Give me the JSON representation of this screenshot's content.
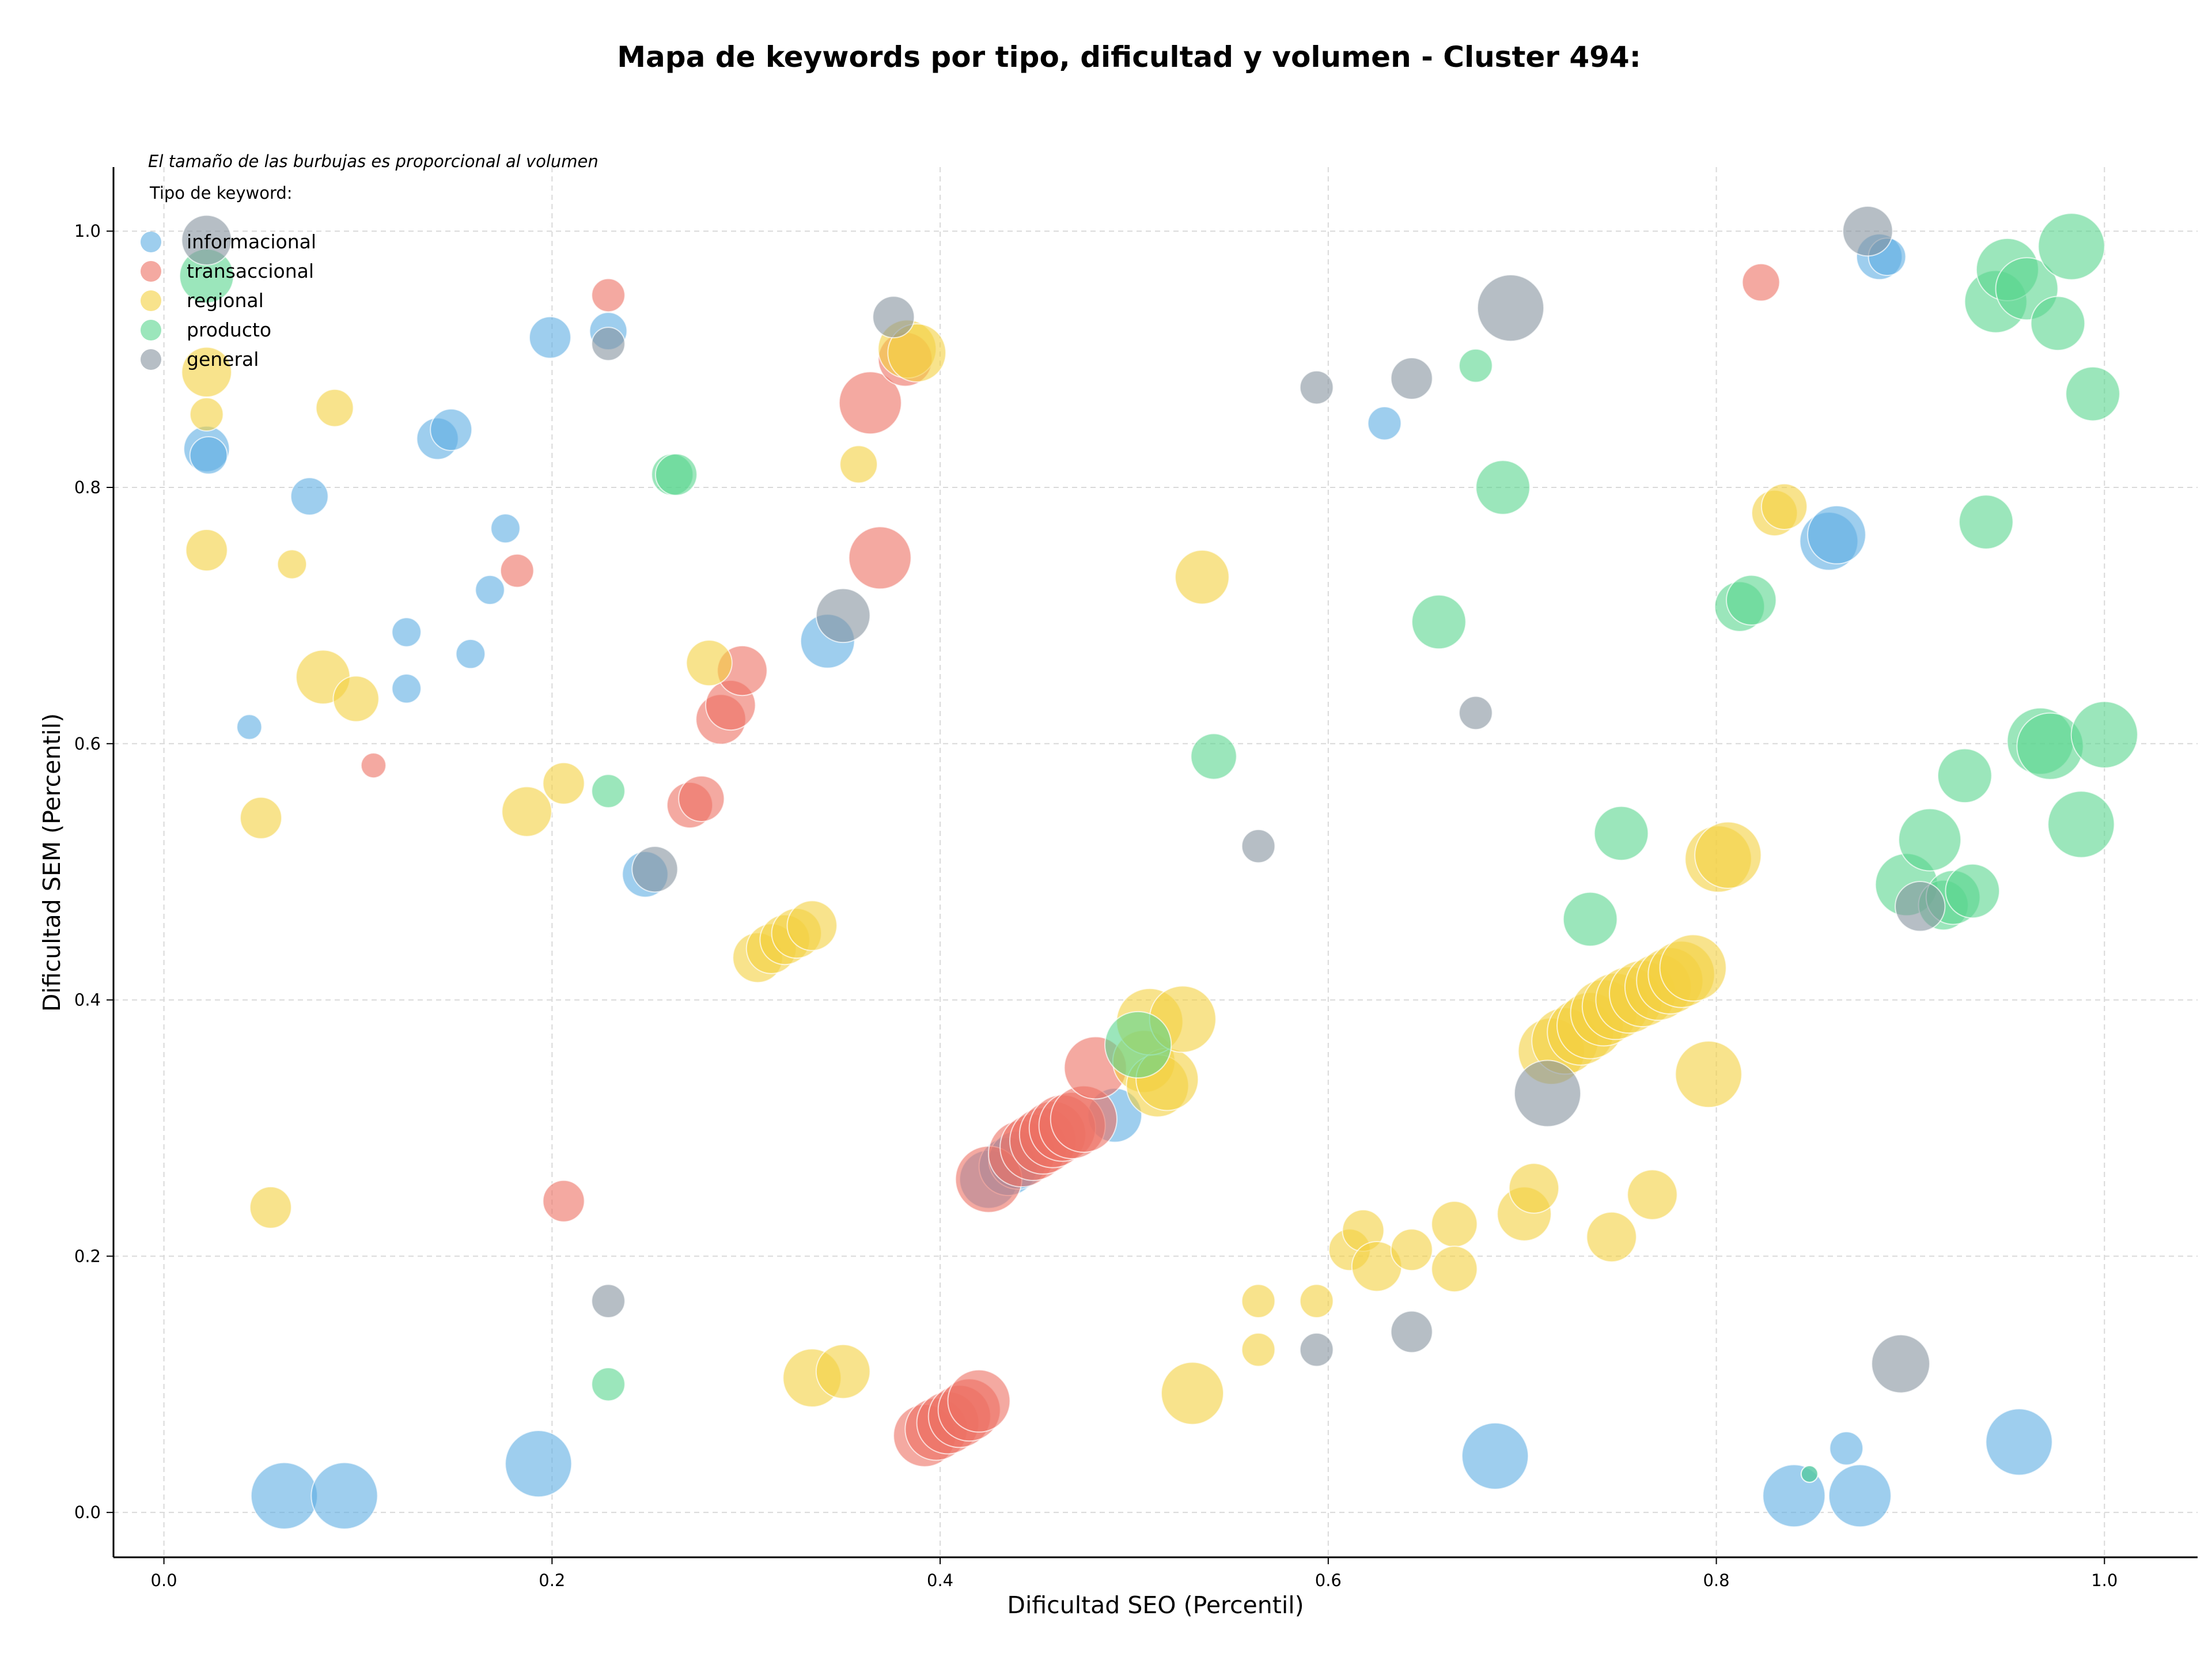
{
  "chart_data": {
    "type": "scatter",
    "title": "Mapa de keywords por tipo, dificultad y volumen - Cluster 494:",
    "xlabel": "Dificultad SEO (Percentil)",
    "ylabel": "Dificultad SEM (Percentil)",
    "note": "El tamaño de las burbujas es proporcional al volumen",
    "legend_title": "Tipo de keyword:",
    "legend_position": "top-left",
    "grid": true,
    "xlim": [
      -0.026,
      1.048
    ],
    "ylim": [
      -0.035,
      1.05
    ],
    "xticks": [
      "0.0",
      "0.2",
      "0.4",
      "0.6",
      "0.8",
      "1.0"
    ],
    "yticks": [
      "0.0",
      "0.2",
      "0.4",
      "0.6",
      "0.8",
      "1.0"
    ],
    "series": [
      {
        "name": "informacional",
        "color": "#5dade2",
        "points": [
          [
            0.022,
            0.83,
            1.1
          ],
          [
            0.023,
            0.825,
            0.9
          ],
          [
            0.044,
            0.613,
            0.6
          ],
          [
            0.062,
            0.013,
            1.6
          ],
          [
            0.093,
            0.013,
            1.6
          ],
          [
            0.075,
            0.793,
            0.9
          ],
          [
            0.125,
            0.687,
            0.7
          ],
          [
            0.125,
            0.643,
            0.7
          ],
          [
            0.141,
            0.838,
            1.0
          ],
          [
            0.148,
            0.845,
            1.0
          ],
          [
            0.158,
            0.67,
            0.7
          ],
          [
            0.168,
            0.72,
            0.7
          ],
          [
            0.176,
            0.768,
            0.7
          ],
          [
            0.193,
            0.038,
            1.6
          ],
          [
            0.199,
            0.917,
            1.0
          ],
          [
            0.229,
            0.922,
            0.9
          ],
          [
            0.248,
            0.498,
            1.1
          ],
          [
            0.342,
            0.68,
            1.3
          ],
          [
            0.425,
            0.26,
            1.4
          ],
          [
            0.435,
            0.27,
            1.4
          ],
          [
            0.44,
            0.275,
            1.4
          ],
          [
            0.49,
            0.31,
            1.3
          ],
          [
            0.629,
            0.85,
            0.8
          ],
          [
            0.686,
            0.044,
            1.6
          ],
          [
            0.84,
            0.013,
            1.5
          ],
          [
            0.848,
            0.03,
            0.4
          ],
          [
            0.858,
            0.758,
            1.4
          ],
          [
            0.862,
            0.763,
            1.4
          ],
          [
            0.867,
            0.05,
            0.8
          ],
          [
            0.874,
            0.013,
            1.5
          ],
          [
            0.884,
            0.98,
            1.1
          ],
          [
            0.888,
            0.98,
            0.9
          ],
          [
            0.956,
            0.055,
            1.6
          ]
        ]
      },
      {
        "name": "transaccional",
        "color": "#ec7063",
        "points": [
          [
            0.108,
            0.583,
            0.6
          ],
          [
            0.182,
            0.735,
            0.8
          ],
          [
            0.206,
            0.243,
            1.0
          ],
          [
            0.229,
            0.95,
            0.8
          ],
          [
            0.271,
            0.552,
            1.1
          ],
          [
            0.277,
            0.557,
            1.1
          ],
          [
            0.287,
            0.619,
            1.2
          ],
          [
            0.292,
            0.63,
            1.2
          ],
          [
            0.298,
            0.657,
            1.2
          ],
          [
            0.364,
            0.866,
            1.5
          ],
          [
            0.369,
            0.745,
            1.5
          ],
          [
            0.382,
            0.9,
            1.3
          ],
          [
            0.392,
            0.06,
            1.5
          ],
          [
            0.398,
            0.065,
            1.5
          ],
          [
            0.404,
            0.07,
            1.5
          ],
          [
            0.41,
            0.075,
            1.5
          ],
          [
            0.415,
            0.08,
            1.5
          ],
          [
            0.42,
            0.087,
            1.5
          ],
          [
            0.425,
            0.26,
            1.6
          ],
          [
            0.442,
            0.28,
            1.6
          ],
          [
            0.448,
            0.285,
            1.6
          ],
          [
            0.453,
            0.29,
            1.6
          ],
          [
            0.458,
            0.295,
            1.6
          ],
          [
            0.463,
            0.3,
            1.6
          ],
          [
            0.468,
            0.302,
            1.6
          ],
          [
            0.474,
            0.307,
            1.6
          ],
          [
            0.48,
            0.347,
            1.5
          ],
          [
            0.823,
            0.96,
            0.9
          ]
        ]
      },
      {
        "name": "regional",
        "color": "#f4d03f",
        "points": [
          [
            0.022,
            0.89,
            1.2
          ],
          [
            0.022,
            0.857,
            0.8
          ],
          [
            0.022,
            0.751,
            1.0
          ],
          [
            0.05,
            0.542,
            1.0
          ],
          [
            0.055,
            0.238,
            1.0
          ],
          [
            0.066,
            0.74,
            0.7
          ],
          [
            0.082,
            0.652,
            1.3
          ],
          [
            0.088,
            0.862,
            0.9
          ],
          [
            0.099,
            0.635,
            1.1
          ],
          [
            0.187,
            0.547,
            1.2
          ],
          [
            0.206,
            0.569,
            1.0
          ],
          [
            0.281,
            0.663,
            1.1
          ],
          [
            0.306,
            0.433,
            1.2
          ],
          [
            0.313,
            0.44,
            1.2
          ],
          [
            0.32,
            0.447,
            1.2
          ],
          [
            0.326,
            0.452,
            1.2
          ],
          [
            0.334,
            0.458,
            1.2
          ],
          [
            0.334,
            0.105,
            1.4
          ],
          [
            0.35,
            0.11,
            1.3
          ],
          [
            0.358,
            0.818,
            0.9
          ],
          [
            0.383,
            0.908,
            1.4
          ],
          [
            0.388,
            0.905,
            1.4
          ],
          [
            0.505,
            0.352,
            1.5
          ],
          [
            0.512,
            0.333,
            1.5
          ],
          [
            0.517,
            0.338,
            1.5
          ],
          [
            0.508,
            0.383,
            1.6
          ],
          [
            0.525,
            0.385,
            1.6
          ],
          [
            0.53,
            0.093,
            1.5
          ],
          [
            0.535,
            0.73,
            1.3
          ],
          [
            0.564,
            0.165,
            0.8
          ],
          [
            0.564,
            0.127,
            0.8
          ],
          [
            0.594,
            0.165,
            0.8
          ],
          [
            0.611,
            0.205,
            1.0
          ],
          [
            0.618,
            0.22,
            1.0
          ],
          [
            0.625,
            0.192,
            1.2
          ],
          [
            0.643,
            0.205,
            1.0
          ],
          [
            0.665,
            0.225,
            1.1
          ],
          [
            0.665,
            0.19,
            1.1
          ],
          [
            0.701,
            0.233,
            1.3
          ],
          [
            0.706,
            0.253,
            1.2
          ],
          [
            0.715,
            0.36,
            1.6
          ],
          [
            0.722,
            0.368,
            1.6
          ],
          [
            0.73,
            0.375,
            1.6
          ],
          [
            0.735,
            0.38,
            1.6
          ],
          [
            0.742,
            0.39,
            1.6
          ],
          [
            0.748,
            0.395,
            1.6
          ],
          [
            0.755,
            0.4,
            1.6
          ],
          [
            0.762,
            0.405,
            1.6
          ],
          [
            0.77,
            0.41,
            1.6
          ],
          [
            0.776,
            0.415,
            1.6
          ],
          [
            0.782,
            0.42,
            1.6
          ],
          [
            0.788,
            0.425,
            1.6
          ],
          [
            0.746,
            0.215,
            1.2
          ],
          [
            0.767,
            0.248,
            1.2
          ],
          [
            0.796,
            0.342,
            1.6
          ],
          [
            0.801,
            0.51,
            1.6
          ],
          [
            0.806,
            0.513,
            1.6
          ],
          [
            0.83,
            0.78,
            1.1
          ],
          [
            0.835,
            0.785,
            1.1
          ]
        ]
      },
      {
        "name": "producto",
        "color": "#58d68d",
        "points": [
          [
            0.022,
            0.965,
            1.3
          ],
          [
            0.229,
            0.563,
            0.8
          ],
          [
            0.229,
            0.1,
            0.8
          ],
          [
            0.262,
            0.81,
            1.0
          ],
          [
            0.264,
            0.81,
            1.0
          ],
          [
            0.502,
            0.365,
            1.6
          ],
          [
            0.541,
            0.59,
            1.1
          ],
          [
            0.657,
            0.695,
            1.3
          ],
          [
            0.676,
            0.895,
            0.8
          ],
          [
            0.69,
            0.8,
            1.3
          ],
          [
            0.735,
            0.463,
            1.3
          ],
          [
            0.751,
            0.53,
            1.3
          ],
          [
            0.812,
            0.707,
            1.2
          ],
          [
            0.818,
            0.712,
            1.2
          ],
          [
            0.848,
            0.03,
            0.4
          ],
          [
            0.898,
            0.49,
            1.5
          ],
          [
            0.91,
            0.525,
            1.5
          ],
          [
            0.917,
            0.474,
            1.2
          ],
          [
            0.922,
            0.48,
            1.3
          ],
          [
            0.928,
            0.575,
            1.3
          ],
          [
            0.932,
            0.485,
            1.3
          ],
          [
            0.939,
            0.773,
            1.3
          ],
          [
            0.944,
            0.945,
            1.5
          ],
          [
            0.95,
            0.97,
            1.5
          ],
          [
            0.96,
            0.955,
            1.5
          ],
          [
            0.967,
            0.602,
            1.6
          ],
          [
            0.972,
            0.598,
            1.6
          ],
          [
            0.976,
            0.928,
            1.3
          ],
          [
            0.983,
            0.988,
            1.6
          ],
          [
            0.988,
            0.537,
            1.6
          ],
          [
            0.994,
            0.873,
            1.3
          ],
          [
            1.0,
            0.607,
            1.6
          ]
        ]
      },
      {
        "name": "general",
        "color": "#85929e",
        "points": [
          [
            0.022,
            0.993,
            1.2
          ],
          [
            0.229,
            0.912,
            0.8
          ],
          [
            0.229,
            0.165,
            0.8
          ],
          [
            0.253,
            0.502,
            1.1
          ],
          [
            0.35,
            0.7,
            1.3
          ],
          [
            0.376,
            0.933,
            1.0
          ],
          [
            0.564,
            0.52,
            0.8
          ],
          [
            0.594,
            0.878,
            0.8
          ],
          [
            0.594,
            0.127,
            0.8
          ],
          [
            0.643,
            0.885,
            1.0
          ],
          [
            0.643,
            0.141,
            1.0
          ],
          [
            0.676,
            0.624,
            0.8
          ],
          [
            0.694,
            0.94,
            1.6
          ],
          [
            0.713,
            0.327,
            1.6
          ],
          [
            0.878,
            1.0,
            1.2
          ],
          [
            0.895,
            0.116,
            1.4
          ],
          [
            0.905,
            0.473,
            1.2
          ]
        ]
      }
    ]
  }
}
